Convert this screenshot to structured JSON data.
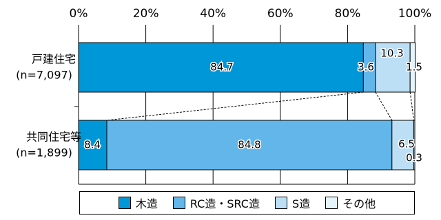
{
  "chart_data": {
    "type": "bar",
    "orientation": "horizontal",
    "stacked": true,
    "x_ticks": [
      "0%",
      "20%",
      "40%",
      "60%",
      "80%",
      "100%"
    ],
    "xlim": [
      0,
      100
    ],
    "categories": [
      {
        "name": "戸建住宅",
        "sub": "(n=7,097)"
      },
      {
        "name": "共同住宅等",
        "sub": "(n=1,899)"
      }
    ],
    "series": [
      {
        "name": "木造",
        "color": "#0097d8",
        "values": [
          84.7,
          8.4
        ]
      },
      {
        "name": "RC造・SRC造",
        "color": "#62b6ea",
        "values": [
          3.6,
          84.8
        ]
      },
      {
        "name": "S造",
        "color": "#bcdff6",
        "values": [
          10.3,
          6.5
        ]
      },
      {
        "name": "その他",
        "color": "#e6f4fc",
        "values": [
          1.5,
          0.3
        ]
      }
    ],
    "data_labels": [
      [
        "84.7",
        "3.6",
        "10.3",
        "1.5"
      ],
      [
        "8.4",
        "84.8",
        "6.5",
        "0.3"
      ]
    ],
    "legend_position": "bottom",
    "grid": true,
    "connector_lines": true
  }
}
